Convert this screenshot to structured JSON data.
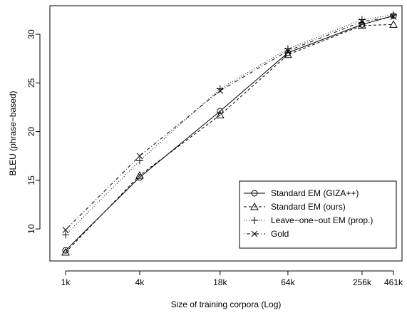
{
  "chart_data": {
    "type": "line",
    "xlabel": "Size of training corpora (Log)",
    "ylabel": "BLEU (phrase−based)",
    "x_scale": "log",
    "x_tick_labels": [
      "1k",
      "4k",
      "18k",
      "64k",
      "256k",
      "461k"
    ],
    "x_values": [
      1,
      4,
      18,
      64,
      256,
      461
    ],
    "y_ticks": [
      10,
      15,
      20,
      25,
      30
    ],
    "y_tick_labels": [
      "10",
      "15",
      "20",
      "25",
      "30"
    ],
    "ylim": [
      7.3,
      32.2
    ],
    "grid": false,
    "legend_position": "bottom-right",
    "series": [
      {
        "name": "Standard EM (GIZA++)",
        "line": "solid",
        "marker": "circle",
        "values": [
          7.8,
          15.3,
          22.1,
          28.1,
          31.0,
          31.9
        ]
      },
      {
        "name": "Standard EM (ours)",
        "line": "dashed",
        "marker": "triangle",
        "values": [
          7.6,
          15.5,
          21.7,
          27.9,
          30.9,
          31.0
        ]
      },
      {
        "name": "Leave−one−out EM (prop.)",
        "line": "dotted",
        "marker": "plus",
        "values": [
          9.4,
          17.0,
          24.4,
          28.5,
          31.5,
          32.0
        ]
      },
      {
        "name": "Gold",
        "line": "dotdash",
        "marker": "cross",
        "values": [
          9.9,
          17.5,
          24.2,
          28.3,
          31.3,
          31.8
        ]
      }
    ]
  }
}
